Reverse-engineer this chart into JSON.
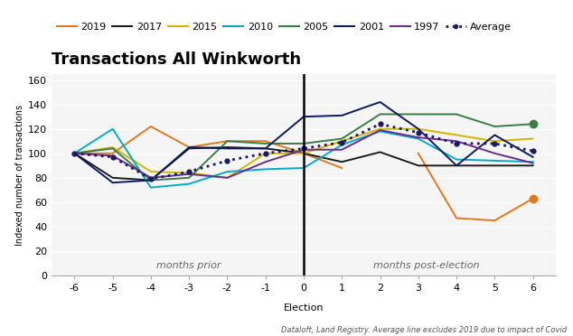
{
  "title": "Transactions All Winkworth",
  "ylabel": "Indexed number of transactions",
  "xlabel_election": "Election",
  "label_months_prior": "months prior",
  "label_months_post": "months post-election",
  "footnote": "Dataloft, Land Registry. Average line excludes 2019 due to impact of Covid",
  "x": [
    -6,
    -5,
    -4,
    -3,
    -2,
    -1,
    0,
    1,
    2,
    3,
    4,
    5,
    6
  ],
  "series": {
    "2019": {
      "color": "#E07820",
      "values": [
        100,
        100,
        122,
        105,
        110,
        110,
        100,
        88,
        null,
        100,
        47,
        45,
        63
      ],
      "linewidth": 1.4,
      "zorder": 3,
      "last_marker": true
    },
    "2017": {
      "color": "#1C1C1C",
      "values": [
        100,
        80,
        78,
        104,
        105,
        104,
        100,
        93,
        101,
        90,
        90,
        90,
        90
      ],
      "linewidth": 1.4,
      "zorder": 3,
      "last_marker": false
    },
    "2015": {
      "color": "#D4B400",
      "values": [
        100,
        105,
        85,
        84,
        80,
        100,
        100,
        110,
        120,
        120,
        115,
        110,
        112
      ],
      "linewidth": 1.4,
      "zorder": 3,
      "last_marker": false
    },
    "2010": {
      "color": "#00AACC",
      "values": [
        100,
        120,
        72,
        75,
        85,
        87,
        88,
        107,
        118,
        112,
        95,
        94,
        93
      ],
      "linewidth": 1.4,
      "zorder": 3,
      "last_marker": false
    },
    "2005": {
      "color": "#3A7D44",
      "values": [
        100,
        104,
        78,
        80,
        110,
        108,
        108,
        112,
        132,
        132,
        132,
        122,
        124
      ],
      "linewidth": 1.4,
      "zorder": 3,
      "last_marker": true
    },
    "2001": {
      "color": "#0D1B5E",
      "values": [
        100,
        76,
        78,
        105,
        104,
        104,
        130,
        131,
        142,
        120,
        90,
        115,
        97
      ],
      "linewidth": 1.4,
      "zorder": 3,
      "last_marker": false
    },
    "1997": {
      "color": "#6B2D8B",
      "values": [
        100,
        98,
        80,
        83,
        80,
        93,
        103,
        103,
        119,
        113,
        110,
        100,
        92
      ],
      "linewidth": 1.4,
      "zorder": 3,
      "last_marker": false
    },
    "Average": {
      "color": "#1A1A5E",
      "values": [
        100,
        97,
        79,
        85,
        94,
        100,
        104,
        109,
        124,
        117,
        108,
        108,
        102
      ],
      "linewidth": 2.0,
      "zorder": 4,
      "last_marker": false
    }
  },
  "series_order": [
    "2019",
    "2017",
    "2015",
    "2010",
    "2005",
    "2001",
    "1997",
    "Average"
  ],
  "ylim": [
    0,
    165
  ],
  "yticks": [
    0,
    20,
    40,
    60,
    80,
    100,
    120,
    140,
    160
  ],
  "xticks": [
    -6,
    -5,
    -4,
    -3,
    -2,
    -1,
    0,
    1,
    2,
    3,
    4,
    5,
    6
  ],
  "background_color": "#ffffff",
  "plot_bg": "#f5f5f5",
  "grid_color": "#ffffff",
  "title_fontsize": 13,
  "axis_fontsize": 8,
  "legend_fontsize": 8,
  "tick_fontsize": 8
}
